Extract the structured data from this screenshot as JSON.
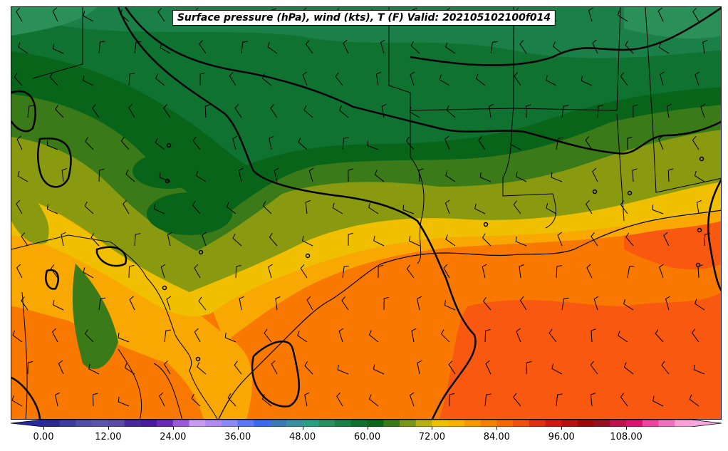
{
  "title": "Surface pressure (hPa), wind (kts), T (F) Valid: 202105102100f014",
  "colorbar": {
    "ticks": [
      "0.00",
      "12.00",
      "24.00",
      "36.00",
      "48.00",
      "60.00",
      "72.00",
      "84.00",
      "96.00",
      "108.00"
    ],
    "colors": [
      "#2b2b8f",
      "#3d3da0",
      "#4f4fa8",
      "#5a56ad",
      "#5c4aa8",
      "#4b2aa0",
      "#4a1aa0",
      "#6a2ab8",
      "#9a5ad8",
      "#c89af0",
      "#b08af0",
      "#8a8af8",
      "#5a78f8",
      "#3a68f0",
      "#3a7ab8",
      "#3a90a0",
      "#2aa080",
      "#2a9060",
      "#1a8048",
      "#107030",
      "#086818",
      "#3a7a18",
      "#789818",
      "#b8b010",
      "#f0c000",
      "#f8b000",
      "#f89800",
      "#f88000",
      "#f86800",
      "#f05010",
      "#e03010",
      "#d01810",
      "#b81010",
      "#a00808",
      "#981020",
      "#c01050",
      "#e01070",
      "#f040a0",
      "#f070c0",
      "#f8a0d8"
    ],
    "min_color": "#2828a0",
    "max_color": "#f8a8e0"
  },
  "map_colors": {
    "dark_green": "#086418",
    "forest_green": "#0f7230",
    "green": "#1a8048",
    "light_sea_green": "#2a9058",
    "olive_green": "#3a7a18",
    "olive": "#8a9a10",
    "yellow": "#f0c000",
    "amber": "#f8a800",
    "orange": "#f87800",
    "deep_orange": "#f85810"
  }
}
